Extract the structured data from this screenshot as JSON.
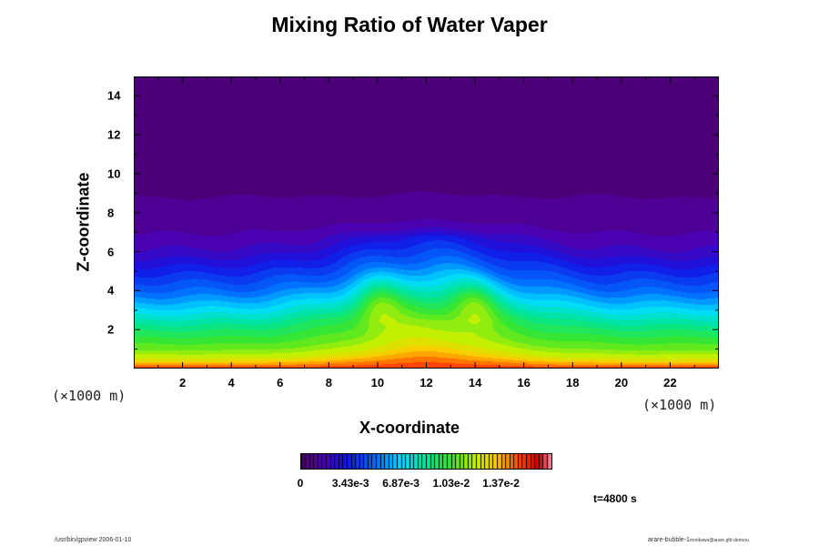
{
  "chart_data": {
    "type": "heatmap",
    "title": "Mixing Ratio of Water Vaper",
    "xlabel": "X-coordinate",
    "ylabel": "Z-coordinate",
    "x_unit": "(×1000 m)",
    "y_unit": "(×1000 m)",
    "xlim": [
      0,
      24
    ],
    "ylim": [
      0,
      15
    ],
    "x_ticks": [
      2,
      4,
      6,
      8,
      10,
      12,
      14,
      16,
      18,
      20,
      22
    ],
    "y_ticks": [
      2,
      4,
      6,
      8,
      10,
      12,
      14
    ],
    "colorbar": {
      "min": 0,
      "max": 0.0172,
      "tick_labels": [
        "0",
        "3.43e-3",
        "6.87e-3",
        "1.03e-2",
        "1.37e-2"
      ],
      "tick_values": [
        0,
        0.00343,
        0.00687,
        0.0103,
        0.0137
      ],
      "colormap": "rainbow-dark-to-red"
    },
    "vertical_profile": {
      "z": [
        0,
        0.5,
        1,
        2,
        3,
        4,
        5,
        6,
        7,
        8,
        9,
        10,
        11,
        12,
        13,
        15
      ],
      "value": [
        0.0155,
        0.0125,
        0.011,
        0.0092,
        0.007,
        0.005,
        0.0035,
        0.002,
        0.0012,
        0.0008,
        0.0006,
        0.0005,
        0.0004,
        0.0003,
        0.0002,
        0.0001
      ]
    },
    "bubble": {
      "center_x": 12,
      "top_z": 5.8,
      "plume_x": [
        10,
        14
      ]
    },
    "time_label": "t=4800 s"
  },
  "footer": {
    "left": "/usr/bin/gpview 2006-01-10",
    "right_main": "arare-bubble-1",
    "right_small": "morikawa@arare.gfd-dennou"
  }
}
